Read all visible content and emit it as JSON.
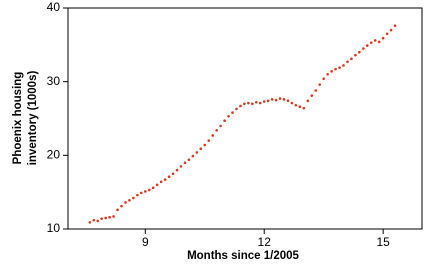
{
  "chart_data": {
    "type": "scatter",
    "x_label": "Months since 1/2005",
    "y_label": [
      "Phoenix housing",
      "inventory (1000s)"
    ],
    "xlim": [
      7.05,
      15.98
    ],
    "ylim": [
      10,
      40
    ],
    "xticks": [
      9,
      12,
      15
    ],
    "yticks": [
      10,
      20,
      30,
      40
    ],
    "grid": false,
    "color": "#d8381a",
    "x": [
      7.6,
      7.7,
      7.8,
      7.9,
      8.0,
      8.1,
      8.2,
      8.3,
      8.4,
      8.5,
      8.6,
      8.7,
      8.8,
      8.9,
      9.0,
      9.1,
      9.2,
      9.3,
      9.4,
      9.5,
      9.6,
      9.7,
      9.8,
      9.9,
      10.0,
      10.1,
      10.2,
      10.3,
      10.4,
      10.5,
      10.6,
      10.7,
      10.8,
      10.9,
      11.0,
      11.1,
      11.2,
      11.3,
      11.4,
      11.5,
      11.6,
      11.7,
      11.8,
      11.9,
      12.0,
      12.1,
      12.2,
      12.3,
      12.4,
      12.5,
      12.6,
      12.7,
      12.8,
      12.9,
      13.0,
      13.1,
      13.2,
      13.3,
      13.4,
      13.5,
      13.6,
      13.7,
      13.8,
      13.9,
      14.0,
      14.1,
      14.2,
      14.3,
      14.4,
      14.5,
      14.6,
      14.7,
      14.8,
      14.9,
      15.0,
      15.1,
      15.2,
      15.3
    ],
    "values": [
      10.9,
      11.2,
      11.1,
      11.4,
      11.5,
      11.6,
      11.7,
      12.6,
      13.1,
      13.6,
      13.9,
      14.2,
      14.6,
      14.9,
      15.1,
      15.3,
      15.6,
      16.0,
      16.4,
      16.7,
      17.1,
      17.5,
      18.0,
      18.5,
      19.0,
      19.4,
      19.9,
      20.4,
      20.9,
      21.4,
      22.0,
      22.7,
      23.4,
      24.0,
      24.7,
      25.3,
      25.8,
      26.3,
      26.7,
      27.0,
      27.1,
      27.0,
      27.2,
      27.1,
      27.3,
      27.4,
      27.6,
      27.5,
      27.7,
      27.6,
      27.4,
      27.1,
      26.8,
      26.6,
      26.4,
      27.4,
      28.1,
      28.8,
      29.6,
      30.4,
      31.0,
      31.4,
      31.7,
      31.9,
      32.2,
      32.7,
      33.1,
      33.6,
      34.0,
      34.5,
      34.9,
      35.3,
      35.6,
      35.4,
      35.9,
      36.5,
      37.0,
      37.6
    ]
  }
}
